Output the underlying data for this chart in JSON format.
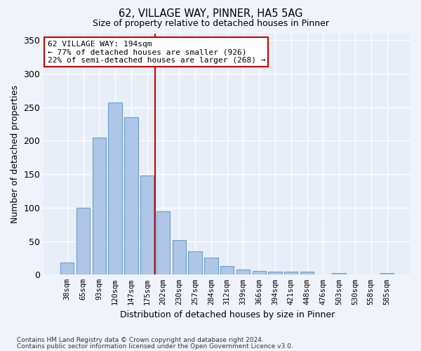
{
  "title_line1": "62, VILLAGE WAY, PINNER, HA5 5AG",
  "title_line2": "Size of property relative to detached houses in Pinner",
  "xlabel": "Distribution of detached houses by size in Pinner",
  "ylabel": "Number of detached properties",
  "bar_labels": [
    "38sqm",
    "65sqm",
    "93sqm",
    "120sqm",
    "147sqm",
    "175sqm",
    "202sqm",
    "230sqm",
    "257sqm",
    "284sqm",
    "312sqm",
    "339sqm",
    "366sqm",
    "394sqm",
    "421sqm",
    "448sqm",
    "476sqm",
    "503sqm",
    "530sqm",
    "558sqm",
    "585sqm"
  ],
  "bar_values": [
    18,
    100,
    205,
    257,
    235,
    148,
    95,
    52,
    35,
    25,
    13,
    8,
    6,
    4,
    5,
    5,
    0,
    2,
    0,
    0,
    2
  ],
  "bar_color": "#aec6e8",
  "bar_edge_color": "#6a9fc8",
  "vline_x": 5.5,
  "vline_color": "#cc0000",
  "annotation_text": "62 VILLAGE WAY: 194sqm\n← 77% of detached houses are smaller (926)\n22% of semi-detached houses are larger (268) →",
  "annotation_box_color": "#ffffff",
  "annotation_box_edge": "#cc0000",
  "ylim": [
    0,
    360
  ],
  "yticks": [
    0,
    50,
    100,
    150,
    200,
    250,
    300,
    350
  ],
  "bg_color": "#e8eef7",
  "fig_bg_color": "#f0f4fa",
  "footer_line1": "Contains HM Land Registry data © Crown copyright and database right 2024.",
  "footer_line2": "Contains public sector information licensed under the Open Government Licence v3.0."
}
